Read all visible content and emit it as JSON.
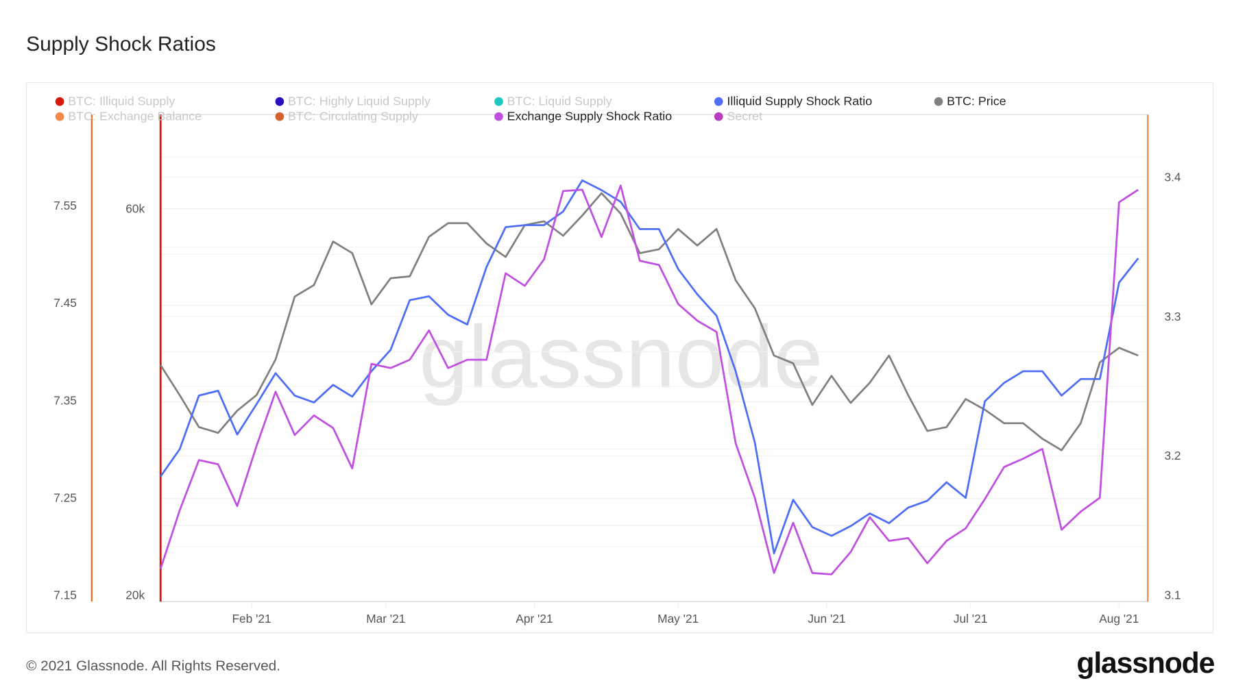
{
  "title": "Supply Shock Ratios",
  "footer": "© 2021 Glassnode. All Rights Reserved.",
  "logo": "glassnode",
  "watermark": "glassnode",
  "legend": [
    {
      "label": "BTC: Illiquid Supply",
      "color": "#d7190a",
      "active": false
    },
    {
      "label": "BTC: Highly Liquid Supply",
      "color": "#2410c0",
      "active": false
    },
    {
      "label": "BTC: Liquid Supply",
      "color": "#1ec8c0",
      "active": false
    },
    {
      "label": "Illiquid Supply Shock Ratio",
      "color": "#4d6ef5",
      "active": true
    },
    {
      "label": "BTC: Price",
      "color": "#808080",
      "active": true
    },
    {
      "label": "BTC: Exchange Balance",
      "color": "#f5894a",
      "active": false
    },
    {
      "label": "BTC: Circulating Supply",
      "color": "#d4622a",
      "active": false
    },
    {
      "label": "Exchange Supply Shock Ratio",
      "color": "#c050e0",
      "active": true
    },
    {
      "label": "Secret",
      "color": "#b83cc0",
      "active": false
    }
  ],
  "chart_data": {
    "type": "line",
    "title": "Supply Shock Ratios",
    "x_start": "2021-01-13",
    "x_step_days": 4,
    "x_range_days": [
      0,
      206
    ],
    "x_ticks": [
      {
        "label": "Feb '21",
        "day": 19
      },
      {
        "label": "Mar '21",
        "day": 47
      },
      {
        "label": "Apr '21",
        "day": 78
      },
      {
        "label": "May '21",
        "day": 108
      },
      {
        "label": "Jun '21",
        "day": 139
      },
      {
        "label": "Jul '21",
        "day": 169
      },
      {
        "label": "Aug '21",
        "day": 200
      }
    ],
    "axes": {
      "issr": {
        "range": [
          7.15,
          7.55
        ],
        "ticks": [
          "7.55",
          "7.45",
          "7.35",
          "7.25",
          "7.15"
        ],
        "tick_values": [
          7.55,
          7.45,
          7.35,
          7.25,
          7.15
        ],
        "color": "#e0702a"
      },
      "price": {
        "range": [
          20,
          60
        ],
        "unit": "k USD",
        "ticks": [
          "60k",
          "20k"
        ],
        "tick_values": [
          60,
          20
        ],
        "color": "#d7190a"
      },
      "essr": {
        "range": [
          3.1,
          3.4
        ],
        "ticks": [
          "3.4",
          "3.3",
          "3.2",
          "3.1"
        ],
        "tick_values": [
          3.4,
          3.3,
          3.2,
          3.1
        ],
        "color": "#f5894a"
      }
    },
    "series": [
      {
        "name": "BTC: Price",
        "axis": "price",
        "color": "#808080",
        "values": [
          43.8,
          40.7,
          37.4,
          36.8,
          39.1,
          40.7,
          44.4,
          50.9,
          52.1,
          56.6,
          55.4,
          50.1,
          52.8,
          53.0,
          57.1,
          58.5,
          58.5,
          56.4,
          55.0,
          58.3,
          58.7,
          57.2,
          59.3,
          61.6,
          59.5,
          55.4,
          55.8,
          57.9,
          56.2,
          57.9,
          52.6,
          49.7,
          44.8,
          44.0,
          39.7,
          42.7,
          39.9,
          42.0,
          44.8,
          40.7,
          37.0,
          37.4,
          40.3,
          39.2,
          37.8,
          37.8,
          36.2,
          35.0,
          37.8,
          44.1,
          45.6,
          44.8
        ]
      },
      {
        "name": "Illiquid Supply Shock Ratio",
        "axis": "issr",
        "color": "#4d6ef5",
        "values": [
          7.272,
          7.3,
          7.355,
          7.36,
          7.315,
          7.346,
          7.378,
          7.355,
          7.348,
          7.366,
          7.354,
          7.38,
          7.402,
          7.453,
          7.457,
          7.438,
          7.428,
          7.487,
          7.528,
          7.53,
          7.53,
          7.544,
          7.576,
          7.566,
          7.554,
          7.526,
          7.526,
          7.485,
          7.459,
          7.437,
          7.38,
          7.307,
          7.193,
          7.248,
          7.22,
          7.211,
          7.221,
          7.234,
          7.224,
          7.24,
          7.247,
          7.266,
          7.25,
          7.349,
          7.368,
          7.38,
          7.38,
          7.355,
          7.372,
          7.372,
          7.471,
          7.496
        ]
      },
      {
        "name": "Exchange Supply Shock Ratio",
        "axis": "essr",
        "color": "#c050e0",
        "values": [
          3.119,
          3.161,
          3.197,
          3.194,
          3.164,
          3.207,
          3.246,
          3.215,
          3.229,
          3.22,
          3.191,
          3.266,
          3.263,
          3.269,
          3.29,
          3.263,
          3.269,
          3.269,
          3.331,
          3.322,
          3.341,
          3.39,
          3.391,
          3.357,
          3.394,
          3.34,
          3.337,
          3.309,
          3.297,
          3.289,
          3.209,
          3.17,
          3.116,
          3.152,
          3.116,
          3.115,
          3.131,
          3.156,
          3.139,
          3.141,
          3.123,
          3.139,
          3.148,
          3.169,
          3.192,
          3.198,
          3.205,
          3.147,
          3.16,
          3.17,
          3.382,
          3.391
        ]
      }
    ],
    "grid": true,
    "legend_position": "top"
  }
}
